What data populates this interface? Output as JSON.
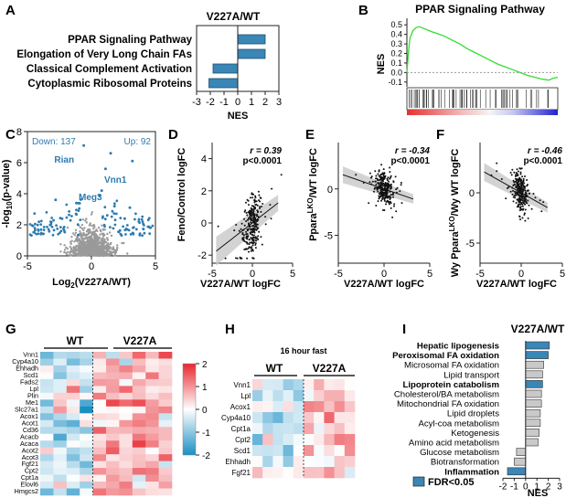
{
  "colors": {
    "bar_blue": "#3a86b6",
    "bar_gray": "#c9c9c9",
    "volcano_blue": "#2e7bb0",
    "gsea_green": "#33dd33"
  },
  "panel_labels": [
    "A",
    "B",
    "C",
    "D",
    "E",
    "F",
    "G",
    "H",
    "I"
  ],
  "panelA": {
    "title": "V227A/WT",
    "xlabel": "NES",
    "chart_data": {
      "type": "bar",
      "orientation": "horizontal",
      "categories": [
        "PPAR Signaling Pathway",
        "Elongation of Very Long Chain FAs",
        "Classical Complement Activation",
        "Cytoplasmic Ribosomal Proteins"
      ],
      "values": [
        2.0,
        2.0,
        -1.8,
        -2.1
      ],
      "xlim": [
        -3,
        3
      ],
      "xticks": [
        "-3",
        "-2",
        "-1",
        "0",
        "1",
        "2",
        "3"
      ]
    }
  },
  "panelB": {
    "title": "PPAR Signaling Pathway",
    "ylabel": "NES",
    "chart_data": {
      "type": "line",
      "x": [
        0,
        0.01,
        0.02,
        0.04,
        0.06,
        0.08,
        0.1,
        0.13,
        0.16,
        0.2,
        0.25,
        0.3,
        0.35,
        0.4,
        0.45,
        0.5,
        0.55,
        0.6,
        0.65,
        0.7,
        0.75,
        0.8,
        0.85,
        0.9,
        0.94,
        0.97,
        1.0
      ],
      "y": [
        0.0,
        0.2,
        0.36,
        0.44,
        0.47,
        0.48,
        0.47,
        0.45,
        0.43,
        0.41,
        0.38,
        0.34,
        0.3,
        0.25,
        0.21,
        0.17,
        0.13,
        0.09,
        0.06,
        0.03,
        0.0,
        -0.03,
        -0.05,
        -0.07,
        -0.08,
        -0.06,
        -0.05
      ],
      "ylim": [
        -0.15,
        0.55
      ],
      "yticks": [
        "0.5",
        "0.4",
        "0.3",
        "0.2",
        "0.1",
        "0.0",
        "-0.1"
      ]
    }
  },
  "panelC": {
    "down_label": "Down: 137",
    "up_label": "Up: 92",
    "xlabel": "Log",
    "xlabel_sub": "2",
    "xlabel_rest": "(V227A/WT)",
    "ylabel": "-log",
    "ylabel_sub": "10",
    "ylabel_rest": "(p-value)",
    "chart_data": {
      "type": "scatter",
      "xlim": [
        -5,
        5
      ],
      "ylim": [
        0,
        8
      ],
      "xticks": [
        "-5",
        "0",
        "5"
      ],
      "yticks": [
        "0",
        "2",
        "4",
        "6",
        "8"
      ],
      "annotations": [
        {
          "label": "Rian",
          "x": -2.9,
          "y": 6.0
        },
        {
          "label": "Meg3",
          "x": -1.0,
          "y": 3.6
        },
        {
          "label": "Vnn1",
          "x": 1.0,
          "y": 4.7
        }
      ]
    }
  },
  "panelD": {
    "ylabel": "Feno/Control logFC",
    "xlabel": "V227A/WT logFC",
    "r_label": "r = 0.39",
    "p_label": "p<0.0001",
    "chart_data": {
      "type": "scatter",
      "xlim": [
        -5,
        5
      ],
      "ylim": [
        -2.5,
        5
      ],
      "xticks": [
        "-5",
        "0",
        "5"
      ],
      "yticks": [
        "-2",
        "0",
        "2",
        "4"
      ],
      "slope": 0.39
    }
  },
  "panelE": {
    "ylabel_pre": "Ppara",
    "ylabel_sup": "LKO",
    "ylabel_post": "/WT logFC",
    "xlabel": "V227A/WT logFC",
    "r_label": "r = -0.34",
    "p_label": "p<0.0001",
    "chart_data": {
      "type": "scatter",
      "xlim": [
        -5,
        5
      ],
      "ylim": [
        -8,
        5
      ],
      "xticks": [
        "-5",
        "0",
        "5"
      ],
      "yticks": [
        "-5",
        "0"
      ],
      "slope": -0.34
    }
  },
  "panelF": {
    "ylabel_pre": "Wy Ppara",
    "ylabel_sup": "LKO",
    "ylabel_post": "/Wy WT logFC",
    "xlabel": "V227A/WT logFC",
    "r_label": "r = -0.46",
    "p_label": "p<0.0001",
    "chart_data": {
      "type": "scatter",
      "xlim": [
        -5,
        5
      ],
      "ylim": [
        -7,
        5
      ],
      "xticks": [
        "-5",
        "0",
        "5"
      ],
      "yticks": [
        "-5",
        "0"
      ],
      "slope": -0.46
    }
  },
  "panelG": {
    "group_wt": "WT",
    "group_mut": "V227A",
    "genes": [
      "Vnn1",
      "Cyp4a10",
      "Ehhadh",
      "Scd1",
      "Fads2",
      "Lpl",
      "Plin",
      "Me1",
      "Slc27a1",
      "Acox1",
      "Acot1",
      "Cd36",
      "Acacb",
      "Acaca",
      "Acot2",
      "Acot3",
      "Fgf21",
      "Cpt2",
      "Cpt1a",
      "Elovl6",
      "Hmgcs2"
    ],
    "legend_ticks": [
      "2",
      "1",
      "0",
      "-1",
      "-2"
    ],
    "chart_data": {
      "type": "heatmap",
      "columns": 10,
      "split_after": 4,
      "scale": [
        -2,
        2
      ]
    }
  },
  "panelH": {
    "title": "16 hour fast",
    "group_wt": "WT",
    "group_mut": "V227A",
    "genes": [
      "Vnn1",
      "Lpl",
      "Acox1",
      "Cyp4a10",
      "Cpt1a",
      "Cpt2",
      "Scd1",
      "Ehhadh",
      "Fgf21"
    ],
    "chart_data": {
      "type": "heatmap",
      "columns": 10,
      "split_after": 5,
      "scale": [
        -2,
        2
      ]
    }
  },
  "panelI": {
    "title": "V227A/WT",
    "xlabel": "NES",
    "legend_label": "FDR<0.05",
    "chart_data": {
      "type": "bar",
      "orientation": "horizontal",
      "categories": [
        "Hepatic lipogenesis",
        "Peroxisomal FA oxidation",
        "Microsomal FA oxidation",
        "Lipid transport",
        "Lipoprotein catabolism",
        "Cholesterol/BA metabolism",
        "Mitochondrial FA oxidation",
        "Lipid droplets",
        "Acyl-coa metabolism",
        "Ketogenesis",
        "Amino acid metabolism",
        "Glucose metabolism",
        "Biotransformation",
        "Inflammation"
      ],
      "values": [
        2.1,
        2.0,
        1.6,
        1.5,
        1.5,
        1.4,
        1.4,
        1.3,
        1.3,
        1.2,
        1.1,
        -0.8,
        -1.0,
        -1.6
      ],
      "significant": [
        true,
        true,
        false,
        false,
        true,
        false,
        false,
        false,
        false,
        false,
        false,
        false,
        false,
        true
      ],
      "xlim": [
        -2,
        3
      ],
      "xticks": [
        "-2",
        "-1",
        "0",
        "1",
        "2",
        "3"
      ]
    }
  }
}
